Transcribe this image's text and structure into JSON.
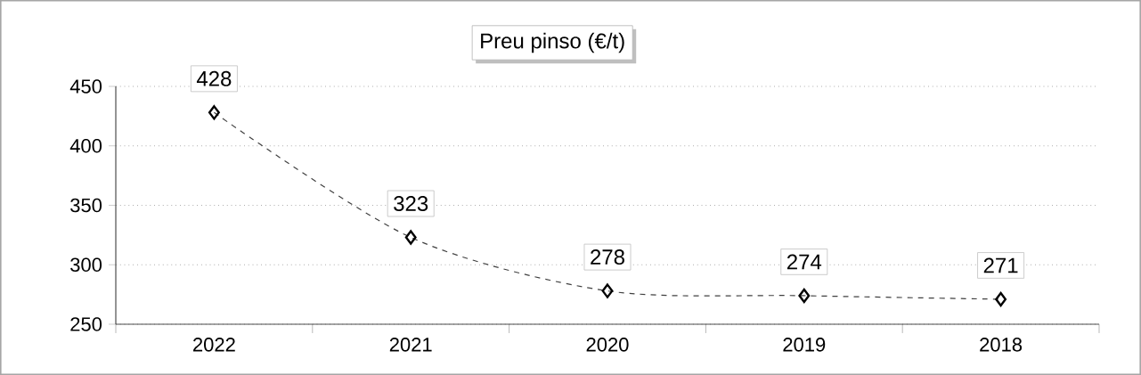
{
  "chart_data": {
    "type": "line",
    "title": "Preu pinso (€/t)",
    "categories": [
      "2022",
      "2021",
      "2020",
      "2019",
      "2018"
    ],
    "values": [
      428,
      323,
      278,
      274,
      271
    ],
    "color": "#404040",
    "ylim": [
      250,
      450
    ],
    "yticks": [
      250,
      300,
      350,
      400,
      450
    ],
    "grid": "y",
    "marker": "diamond",
    "line_style": "dashed",
    "data_labels": true
  }
}
